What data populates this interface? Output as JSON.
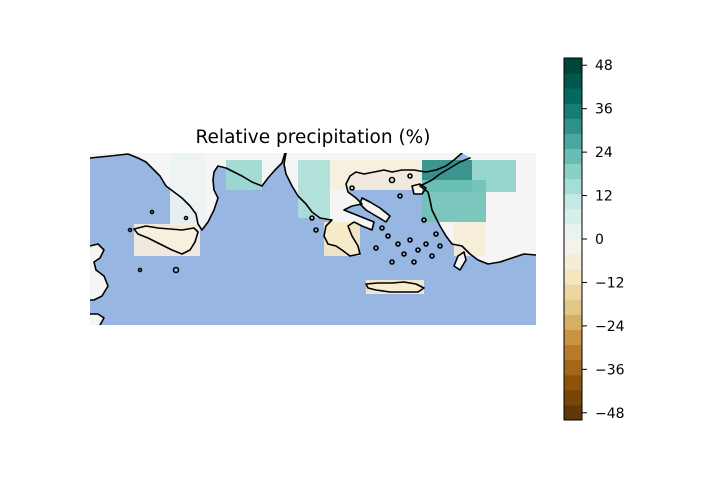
{
  "map": {
    "title": "Relative precipitation (%)",
    "ocean_color": "#97b6e1",
    "land_color": "#f5f5f5",
    "coastline_color": "#000000",
    "region": "Central and Eastern Mediterranean (Sicily, southern Italy, Greece, Aegean Sea, Crete, western Turkey)",
    "colormap": "BrBG",
    "grid_cells": [
      {
        "area": "Calabria / Basilicata",
        "value": 2
      },
      {
        "area": "Apulia heel",
        "value": 16
      },
      {
        "area": "Sicily",
        "value": -5
      },
      {
        "area": "Northwestern Greece (Epirus)",
        "value": 14
      },
      {
        "area": "Northern Greece (Macedonia)",
        "value": -5
      },
      {
        "area": "Thrace / Marmara",
        "value": 32
      },
      {
        "area": "Northwest Anatolia",
        "value": 18
      },
      {
        "area": "Western Anatolia (Izmir)",
        "value": 22
      },
      {
        "area": "Peloponnese",
        "value": -10
      },
      {
        "area": "Crete",
        "value": -8
      },
      {
        "area": "Southwest Anatolia",
        "value": -6
      }
    ]
  },
  "colorbar": {
    "min": -50,
    "max": 50,
    "ticks": [
      48,
      36,
      24,
      12,
      0,
      -12,
      -24,
      -36,
      -48
    ],
    "tick_labels": [
      "48",
      "36",
      "24",
      "12",
      "0",
      "−12",
      "−24",
      "−36",
      "−48"
    ],
    "levels": 24,
    "top_color": "#003c30",
    "bottom_color": "#543005"
  }
}
